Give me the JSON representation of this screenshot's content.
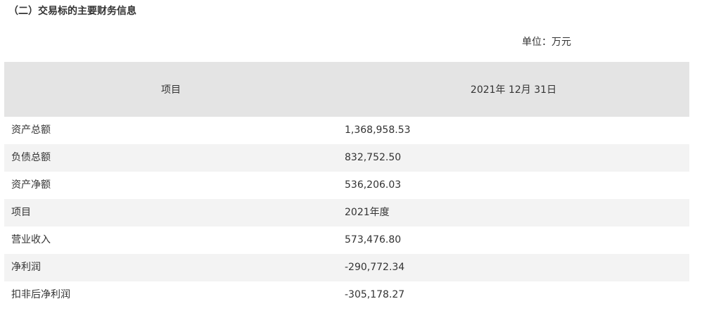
{
  "section_title": "（二）交易标的主要财务信息",
  "unit_note": "单位：万元",
  "table": {
    "headers": [
      "项目",
      "2021年 12月 31日"
    ],
    "rows": [
      {
        "label": "资产总额",
        "value": "1,368,958.53"
      },
      {
        "label": "负债总额",
        "value": "832,752.50"
      },
      {
        "label": "资产净额",
        "value": "536,206.03"
      },
      {
        "label": "项目",
        "value": "2021年度"
      },
      {
        "label": "营业收入",
        "value": "573,476.80"
      },
      {
        "label": "净利润",
        "value": "-290,772.34"
      },
      {
        "label": "扣非后净利润",
        "value": "-305,178.27"
      }
    ]
  }
}
